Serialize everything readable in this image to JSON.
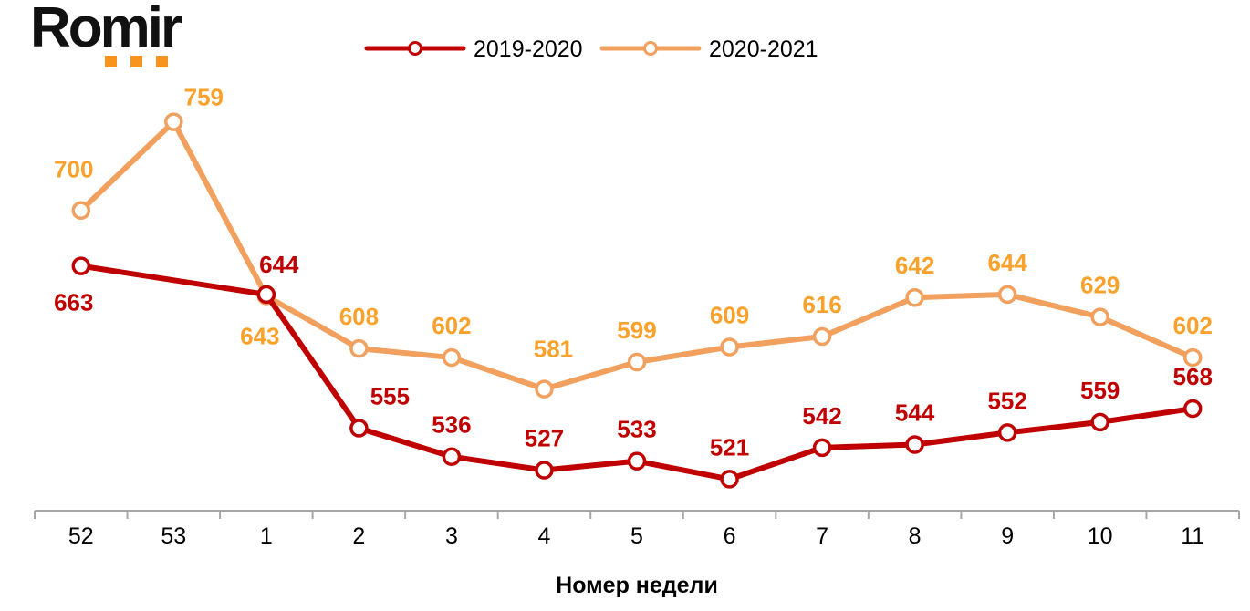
{
  "logo": {
    "text": "Romir",
    "dots_color": "#F7941D",
    "text_color": "#111111"
  },
  "chart_data": {
    "type": "line",
    "title": "",
    "xlabel": "Номер недели",
    "ylabel": "",
    "categories": [
      "52",
      "53",
      "1",
      "2",
      "3",
      "4",
      "5",
      "6",
      "7",
      "8",
      "9",
      "10",
      "11"
    ],
    "ylim": [
      500,
      780
    ],
    "grid": false,
    "legend_position": "top-center",
    "axis_color": "#A6A6A6",
    "text_color": "#000000",
    "series": [
      {
        "name": "2019-2020",
        "color": "#C00000",
        "label_color": "#C00000",
        "values": [
          663,
          null,
          644,
          555,
          536,
          527,
          533,
          521,
          542,
          544,
          552,
          559,
          568
        ]
      },
      {
        "name": "2020-2021",
        "color": "#F2A05E",
        "label_color": "#F9A12B",
        "values": [
          700,
          759,
          643,
          608,
          602,
          581,
          599,
          609,
          616,
          642,
          644,
          629,
          602
        ]
      }
    ]
  }
}
